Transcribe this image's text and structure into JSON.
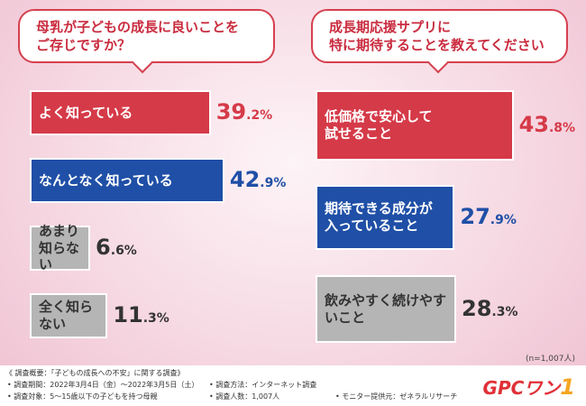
{
  "left": {
    "question": [
      "母乳が子どもの成長に良いことを",
      "ご存じですか？"
    ],
    "items": [
      {
        "label": [
          "よく知っている"
        ],
        "value": 39.2,
        "style": "red"
      },
      {
        "label": [
          "なんとなく知っている"
        ],
        "value": 42.9,
        "style": "blue"
      },
      {
        "label": [
          "あまり知らない"
        ],
        "value": 6.6,
        "style": "gray"
      },
      {
        "label": [
          "全く知らない"
        ],
        "value": 11.3,
        "style": "gray"
      }
    ]
  },
  "right": {
    "question": [
      "成長期応援サプリに",
      "特に期待することを教えてください"
    ],
    "items": [
      {
        "label": [
          "低価格で安心して",
          "試せること"
        ],
        "value": 43.8,
        "style": "red"
      },
      {
        "label": [
          "期待できる成分が",
          "入っていること"
        ],
        "value": 27.9,
        "style": "blue"
      },
      {
        "label": [
          "飲みやすく続けやすいこと"
        ],
        "value": 28.3,
        "style": "gray"
      }
    ]
  },
  "sample_size": "(n=1,007人)",
  "footer": {
    "summary": "《 調査概要：「子どもの成長への不安」に関する調査》",
    "period": "• 調査期間：2022年3月4日（金）～2022年3月5日（土）",
    "method": "• 調査方法：インターネット調査",
    "target": "• 調査対象：5～15歳以下の子どもを持つ母親",
    "count": "• 調査人数：1,007人",
    "provider": "• モニター提供元：ゼネラルリサーチ"
  },
  "logo": {
    "text": "GPCワン",
    "mark": "1"
  },
  "chart_data": [
    {
      "type": "bar",
      "title": "母乳が子どもの成長に良いことをご存じですか？",
      "categories": [
        "よく知っている",
        "なんとなく知っている",
        "あまり知らない",
        "全く知らない"
      ],
      "values": [
        39.2,
        42.9,
        6.6,
        11.3
      ],
      "unit": "%",
      "orientation": "horizontal"
    },
    {
      "type": "bar",
      "title": "成長期応援サプリに特に期待することを教えてください",
      "categories": [
        "低価格で安心して試せること",
        "期待できる成分が入っていること",
        "飲みやすく続けやすいこと"
      ],
      "values": [
        43.8,
        27.9,
        28.3
      ],
      "unit": "%",
      "orientation": "horizontal"
    }
  ],
  "colors": {
    "red": "#d53a48",
    "blue": "#1f4fa6",
    "gray": "#b5b5b5"
  }
}
